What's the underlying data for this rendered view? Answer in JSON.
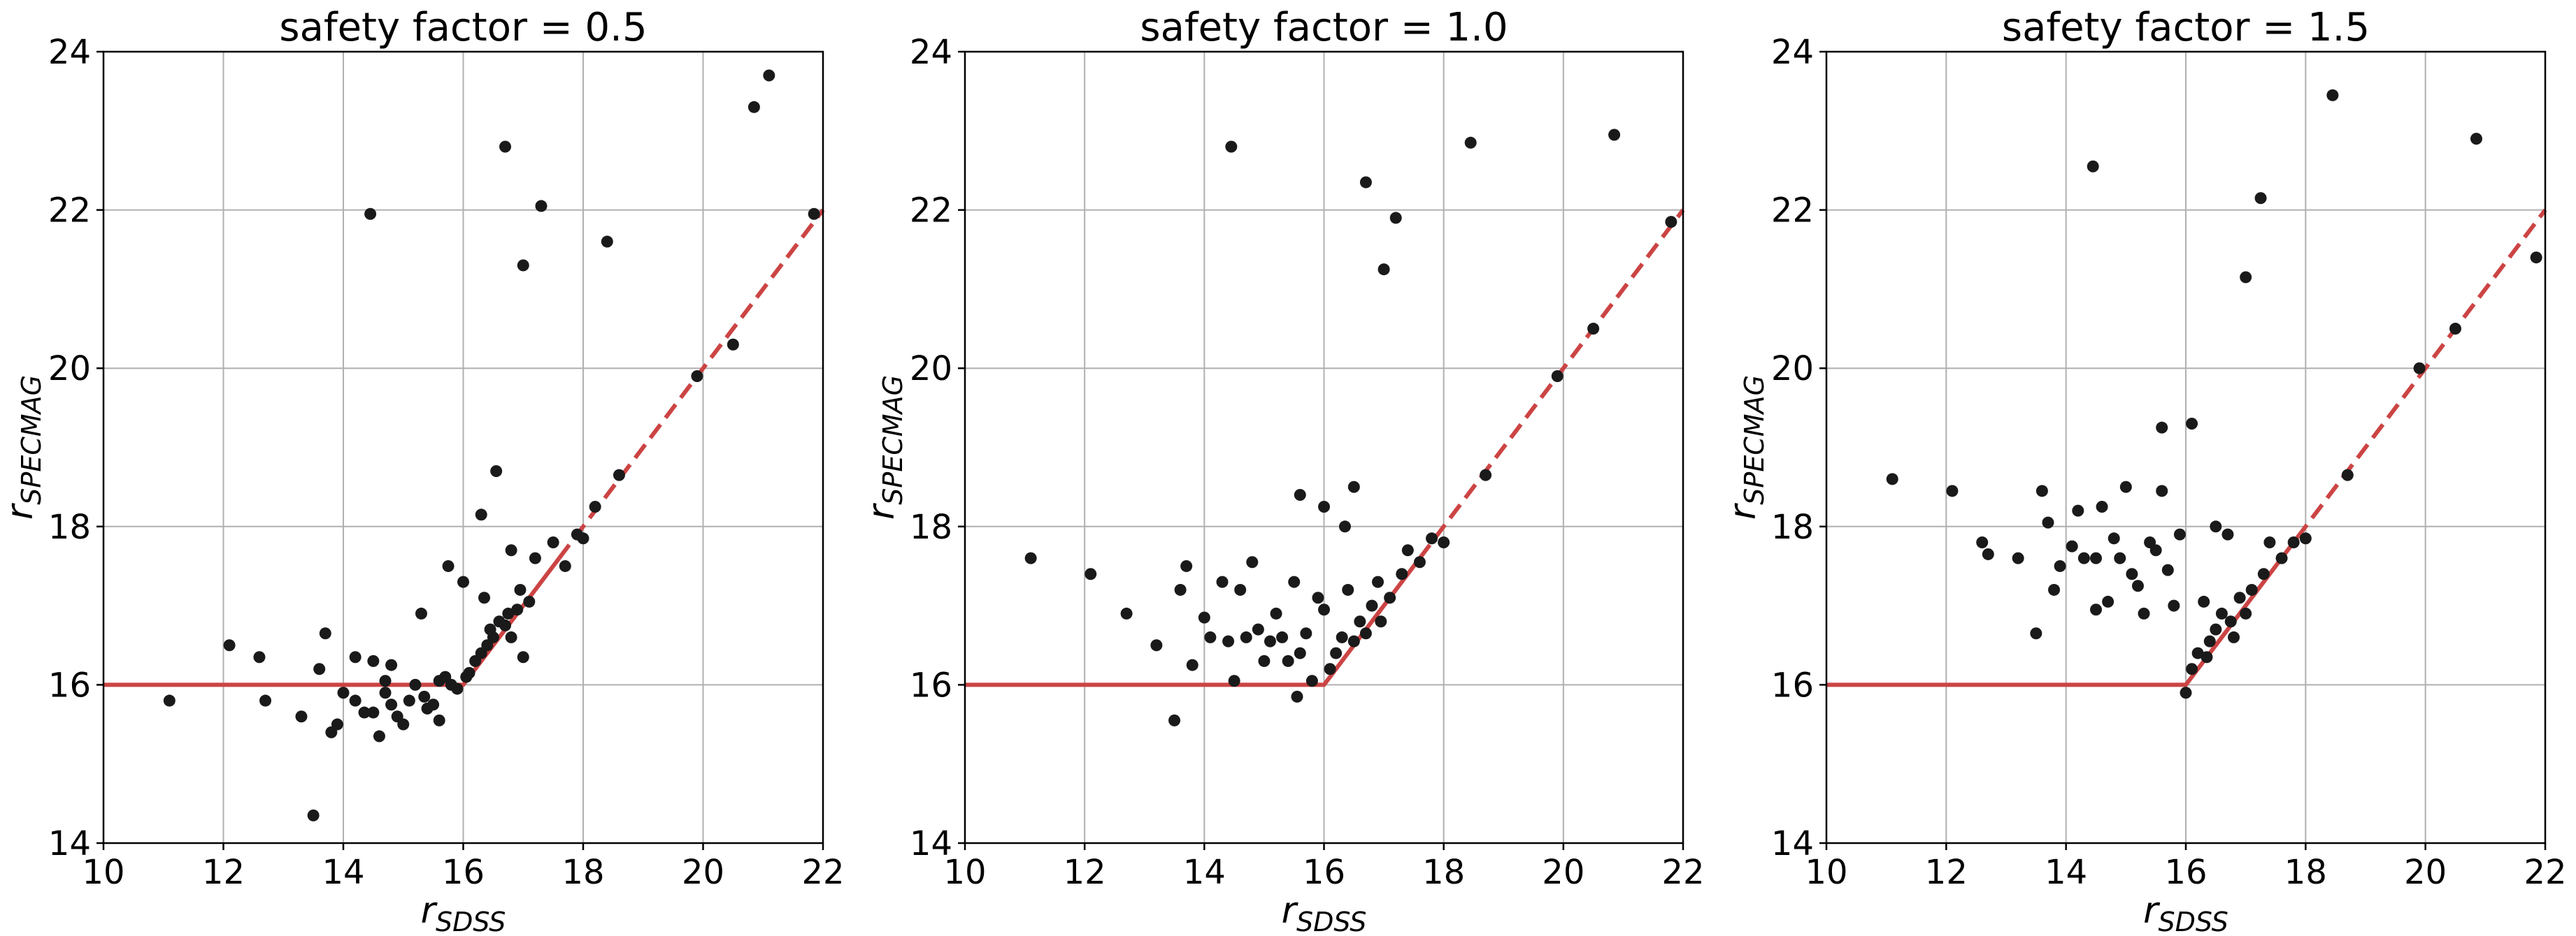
{
  "chart_data": [
    {
      "type": "scatter",
      "title": "safety factor = 0.5",
      "xlabel": {
        "main": "r",
        "sub": "SDSS"
      },
      "ylabel": {
        "main": "r",
        "sub": "SPECMAG"
      },
      "xlim": [
        10,
        22
      ],
      "ylim": [
        14,
        24
      ],
      "x_ticks": [
        10,
        12,
        14,
        16,
        18,
        20,
        22
      ],
      "y_ticks": [
        14,
        16,
        18,
        20,
        22,
        24
      ],
      "grid": true,
      "threshold_line": {
        "flat_y": 16,
        "from_x": 10,
        "knee_x": 16,
        "diag_to_x": 22,
        "solid_until_x": 17.6,
        "color": "#cc4444"
      },
      "point_color": "#1a1a1a",
      "points": [
        [
          11.1,
          15.8
        ],
        [
          12.1,
          16.5
        ],
        [
          12.6,
          16.35
        ],
        [
          12.7,
          15.8
        ],
        [
          13.3,
          15.6
        ],
        [
          13.5,
          14.35
        ],
        [
          13.6,
          16.2
        ],
        [
          13.7,
          16.65
        ],
        [
          13.8,
          15.4
        ],
        [
          13.9,
          15.5
        ],
        [
          14.0,
          15.9
        ],
        [
          14.2,
          15.8
        ],
        [
          14.2,
          16.35
        ],
        [
          14.35,
          15.65
        ],
        [
          14.5,
          16.3
        ],
        [
          14.45,
          21.95
        ],
        [
          14.5,
          15.65
        ],
        [
          14.6,
          15.35
        ],
        [
          14.7,
          15.9
        ],
        [
          14.7,
          16.05
        ],
        [
          14.8,
          15.75
        ],
        [
          14.8,
          16.25
        ],
        [
          14.9,
          15.6
        ],
        [
          15.0,
          15.5
        ],
        [
          15.1,
          15.8
        ],
        [
          15.2,
          16.0
        ],
        [
          15.3,
          16.9
        ],
        [
          15.35,
          15.85
        ],
        [
          15.4,
          15.7
        ],
        [
          15.5,
          15.75
        ],
        [
          15.6,
          15.55
        ],
        [
          15.6,
          16.05
        ],
        [
          15.7,
          16.1
        ],
        [
          15.75,
          17.5
        ],
        [
          15.8,
          16.0
        ],
        [
          15.9,
          15.95
        ],
        [
          16.0,
          17.3
        ],
        [
          16.05,
          16.1
        ],
        [
          16.1,
          16.15
        ],
        [
          16.2,
          16.3
        ],
        [
          16.3,
          16.4
        ],
        [
          16.35,
          17.1
        ],
        [
          16.3,
          18.15
        ],
        [
          16.4,
          16.5
        ],
        [
          16.45,
          16.7
        ],
        [
          16.5,
          16.6
        ],
        [
          16.55,
          18.7
        ],
        [
          16.6,
          16.8
        ],
        [
          16.7,
          16.75
        ],
        [
          16.7,
          22.8
        ],
        [
          16.75,
          16.9
        ],
        [
          16.8,
          16.6
        ],
        [
          16.8,
          17.7
        ],
        [
          16.9,
          16.95
        ],
        [
          16.95,
          17.2
        ],
        [
          17.0,
          16.35
        ],
        [
          17.0,
          21.3
        ],
        [
          17.1,
          17.05
        ],
        [
          17.2,
          17.6
        ],
        [
          17.3,
          22.05
        ],
        [
          17.5,
          17.8
        ],
        [
          17.7,
          17.5
        ],
        [
          17.9,
          17.9
        ],
        [
          18.0,
          17.85
        ],
        [
          18.2,
          18.25
        ],
        [
          18.4,
          21.6
        ],
        [
          18.6,
          18.65
        ],
        [
          19.9,
          19.9
        ],
        [
          20.5,
          20.3
        ],
        [
          20.85,
          23.3
        ],
        [
          21.1,
          23.7
        ],
        [
          21.85,
          21.95
        ]
      ]
    },
    {
      "type": "scatter",
      "title": "safety factor = 1.0",
      "xlabel": {
        "main": "r",
        "sub": "SDSS"
      },
      "ylabel": {
        "main": "r",
        "sub": "SPECMAG"
      },
      "xlim": [
        10,
        22
      ],
      "ylim": [
        14,
        24
      ],
      "x_ticks": [
        10,
        12,
        14,
        16,
        18,
        20,
        22
      ],
      "y_ticks": [
        14,
        16,
        18,
        20,
        22,
        24
      ],
      "grid": true,
      "threshold_line": {
        "flat_y": 16,
        "from_x": 10,
        "knee_x": 16,
        "diag_to_x": 22,
        "solid_until_x": 17.6,
        "color": "#cc4444"
      },
      "point_color": "#1a1a1a",
      "points": [
        [
          11.1,
          17.6
        ],
        [
          12.1,
          17.4
        ],
        [
          12.7,
          16.9
        ],
        [
          13.2,
          16.5
        ],
        [
          13.5,
          15.55
        ],
        [
          13.6,
          17.2
        ],
        [
          13.7,
          17.5
        ],
        [
          13.8,
          16.25
        ],
        [
          14.0,
          16.85
        ],
        [
          14.1,
          16.6
        ],
        [
          14.3,
          17.3
        ],
        [
          14.4,
          16.55
        ],
        [
          14.45,
          22.8
        ],
        [
          14.5,
          16.05
        ],
        [
          14.6,
          17.2
        ],
        [
          14.7,
          16.6
        ],
        [
          14.8,
          17.55
        ],
        [
          14.9,
          16.7
        ],
        [
          15.0,
          16.3
        ],
        [
          15.1,
          16.55
        ],
        [
          15.2,
          16.9
        ],
        [
          15.3,
          16.6
        ],
        [
          15.4,
          16.3
        ],
        [
          15.5,
          17.3
        ],
        [
          15.55,
          15.85
        ],
        [
          15.6,
          16.4
        ],
        [
          15.6,
          18.4
        ],
        [
          15.7,
          16.65
        ],
        [
          15.8,
          16.05
        ],
        [
          15.9,
          17.1
        ],
        [
          16.0,
          16.95
        ],
        [
          16.0,
          18.25
        ],
        [
          16.1,
          16.2
        ],
        [
          16.2,
          16.4
        ],
        [
          16.3,
          16.6
        ],
        [
          16.35,
          18.0
        ],
        [
          16.4,
          17.2
        ],
        [
          16.5,
          16.55
        ],
        [
          16.5,
          18.5
        ],
        [
          16.6,
          16.8
        ],
        [
          16.7,
          16.65
        ],
        [
          16.7,
          22.35
        ],
        [
          16.8,
          17.0
        ],
        [
          16.9,
          17.3
        ],
        [
          16.95,
          16.8
        ],
        [
          17.0,
          21.25
        ],
        [
          17.1,
          17.1
        ],
        [
          17.2,
          21.9
        ],
        [
          17.3,
          17.4
        ],
        [
          17.4,
          17.7
        ],
        [
          17.6,
          17.55
        ],
        [
          17.8,
          17.85
        ],
        [
          18.0,
          17.8
        ],
        [
          18.45,
          22.85
        ],
        [
          18.7,
          18.65
        ],
        [
          19.9,
          19.9
        ],
        [
          20.5,
          20.5
        ],
        [
          20.85,
          22.95
        ],
        [
          21.8,
          21.85
        ]
      ]
    },
    {
      "type": "scatter",
      "title": "safety factor = 1.5",
      "xlabel": {
        "main": "r",
        "sub": "SDSS"
      },
      "ylabel": {
        "main": "r",
        "sub": "SPECMAG"
      },
      "xlim": [
        10,
        22
      ],
      "ylim": [
        14,
        24
      ],
      "x_ticks": [
        10,
        12,
        14,
        16,
        18,
        20,
        22
      ],
      "y_ticks": [
        14,
        16,
        18,
        20,
        22,
        24
      ],
      "grid": true,
      "threshold_line": {
        "flat_y": 16,
        "from_x": 10,
        "knee_x": 16,
        "diag_to_x": 22,
        "solid_until_x": 17.6,
        "color": "#cc4444"
      },
      "point_color": "#1a1a1a",
      "points": [
        [
          11.1,
          18.6
        ],
        [
          12.1,
          18.45
        ],
        [
          12.6,
          17.8
        ],
        [
          12.7,
          17.65
        ],
        [
          13.2,
          17.6
        ],
        [
          13.5,
          16.65
        ],
        [
          13.6,
          18.45
        ],
        [
          13.7,
          18.05
        ],
        [
          13.8,
          17.2
        ],
        [
          13.9,
          17.5
        ],
        [
          14.1,
          17.75
        ],
        [
          14.2,
          18.2
        ],
        [
          14.3,
          17.6
        ],
        [
          14.45,
          22.55
        ],
        [
          14.5,
          17.6
        ],
        [
          14.5,
          16.95
        ],
        [
          14.6,
          18.25
        ],
        [
          14.7,
          17.05
        ],
        [
          14.8,
          17.85
        ],
        [
          14.9,
          17.6
        ],
        [
          15.0,
          18.5
        ],
        [
          15.1,
          17.4
        ],
        [
          15.2,
          17.25
        ],
        [
          15.3,
          16.9
        ],
        [
          15.4,
          17.8
        ],
        [
          15.5,
          17.7
        ],
        [
          15.6,
          18.45
        ],
        [
          15.6,
          19.25
        ],
        [
          15.7,
          17.45
        ],
        [
          15.8,
          17.0
        ],
        [
          15.9,
          17.9
        ],
        [
          16.0,
          15.9
        ],
        [
          16.1,
          19.3
        ],
        [
          16.1,
          16.2
        ],
        [
          16.2,
          16.4
        ],
        [
          16.3,
          17.05
        ],
        [
          16.35,
          16.35
        ],
        [
          16.4,
          16.55
        ],
        [
          16.5,
          18.0
        ],
        [
          16.5,
          16.7
        ],
        [
          16.6,
          16.9
        ],
        [
          16.7,
          17.9
        ],
        [
          16.75,
          16.8
        ],
        [
          16.8,
          16.6
        ],
        [
          16.9,
          17.1
        ],
        [
          17.0,
          21.15
        ],
        [
          17.0,
          16.9
        ],
        [
          17.1,
          17.2
        ],
        [
          17.25,
          22.15
        ],
        [
          17.3,
          17.4
        ],
        [
          17.4,
          17.8
        ],
        [
          17.6,
          17.6
        ],
        [
          17.8,
          17.8
        ],
        [
          18.0,
          17.85
        ],
        [
          18.45,
          23.45
        ],
        [
          18.7,
          18.65
        ],
        [
          19.9,
          20.0
        ],
        [
          20.5,
          20.5
        ],
        [
          20.85,
          22.9
        ],
        [
          21.85,
          21.4
        ]
      ]
    }
  ]
}
